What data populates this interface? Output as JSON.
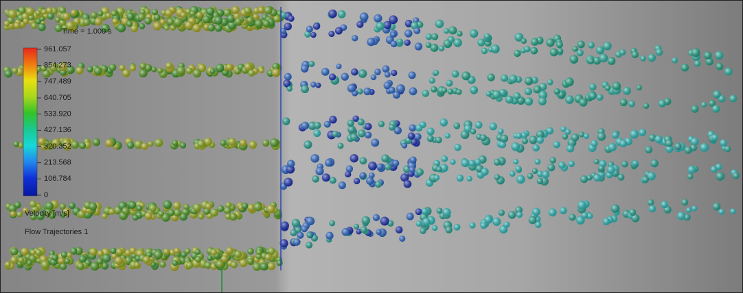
{
  "overlay": {
    "time": "Time = 1.000 s",
    "quantity": "Velocity [m/s]",
    "trajectories": "Flow Trajectories 1"
  },
  "legend": {
    "labels": [
      "961.057",
      "854.273",
      "747.489",
      "640.705",
      "533.920",
      "427.136",
      "320.352",
      "213.568",
      "106.784",
      "0"
    ]
  }
}
